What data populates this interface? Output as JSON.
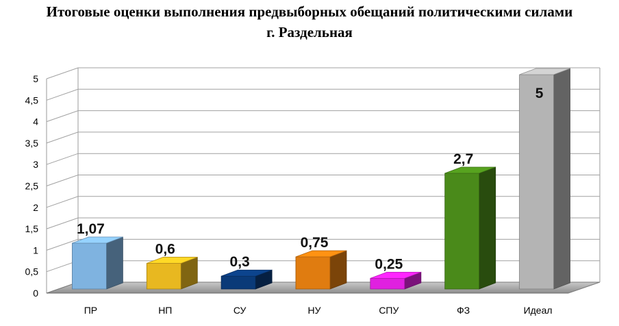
{
  "chart_data": {
    "type": "bar",
    "title_line1": "Итоговые оценки выполнения предвыборных обещаний политическими силами",
    "title_line2": "г. Раздельная",
    "xlabel": "",
    "ylabel": "",
    "ylim": [
      0,
      5
    ],
    "yticks": [
      "0",
      "0,5",
      "1",
      "1,5",
      "2",
      "2,5",
      "3",
      "3,5",
      "4",
      "4,5",
      "5"
    ],
    "grid": true,
    "categories": [
      "ПР",
      "НП",
      "СУ",
      "НУ",
      "СПУ",
      "ФЗ",
      "Идеал"
    ],
    "values": [
      1.07,
      0.6,
      0.3,
      0.75,
      0.25,
      2.7,
      5
    ],
    "value_labels": [
      "1,07",
      "0,6",
      "0,3",
      "0,75",
      "0,25",
      "2,7",
      "5"
    ],
    "colors": [
      "#7fb3e0",
      "#e8b820",
      "#0a3a78",
      "#e07c10",
      "#e020e0",
      "#4a8a1a",
      "#b4b4b4"
    ]
  }
}
